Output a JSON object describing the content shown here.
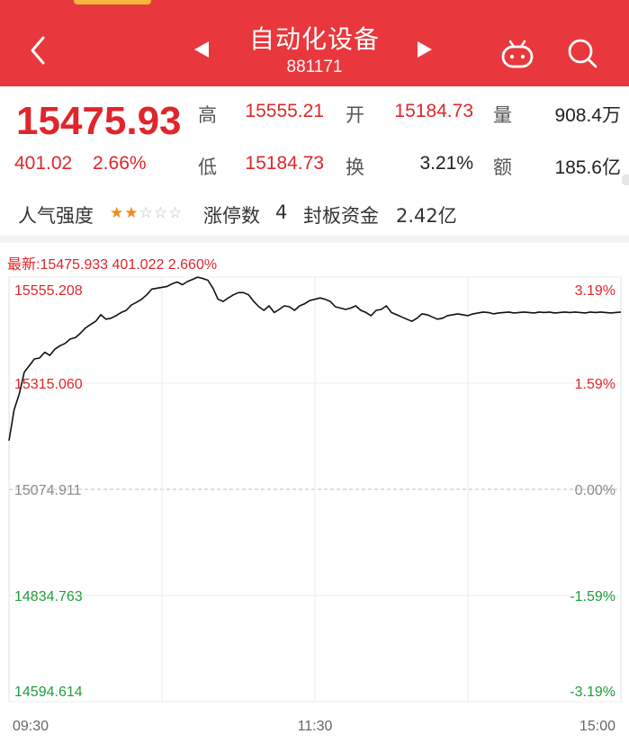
{
  "header": {
    "title": "自动化设备",
    "code": "881171",
    "icons": [
      "back-icon",
      "prev-arrow-icon",
      "next-arrow-icon",
      "robot-icon",
      "search-icon"
    ]
  },
  "quote": {
    "price": "15475.93",
    "change_abs": "401.02",
    "change_pct": "2.66%",
    "high_label": "高",
    "high_value": "15555.21",
    "open_label": "开",
    "open_value": "15184.73",
    "volume_label": "量",
    "volume_value": "908.4万",
    "low_label": "低",
    "low_value": "15184.73",
    "turnover_label": "换",
    "turnover_value": "3.21%",
    "amount_label": "额",
    "amount_value": "185.6亿",
    "popularity_label": "人气强度",
    "stars_total": 5,
    "stars_on": 2,
    "limit_up_label": "涨停数",
    "limit_up_value": "4",
    "seal_fund_label": "封板资金",
    "seal_fund_value": "2.42亿"
  },
  "colors": {
    "header_bg": "#e8383d",
    "up_red": "#e0262b",
    "down_green": "#1e9e3c",
    "accent_orange": "#f08c1c"
  },
  "chart_data": {
    "type": "line",
    "latest_text": "最新:15475.933 401.022 2.660%",
    "base": 15074.911,
    "ylim": [
      14594.614,
      15555.208
    ],
    "y_ticks_left": [
      "15555.208",
      "15315.060",
      "15074.911",
      "14834.763",
      "14594.614"
    ],
    "y_ticks_right": [
      "3.19%",
      "1.59%",
      "0.00%",
      "-1.59%",
      "-3.19%"
    ],
    "x_ticks": [
      "09:30",
      "11:30",
      "15:00"
    ],
    "grid": true,
    "total_minutes": 240,
    "series": [
      {
        "minutes": [
          0,
          2,
          4,
          6,
          8,
          10,
          12,
          14,
          16,
          18,
          20,
          22,
          24,
          26,
          28,
          30,
          32,
          34,
          36,
          38,
          40,
          42,
          44,
          46,
          48,
          50,
          52,
          54,
          56,
          58,
          60,
          62,
          64,
          66,
          68,
          70,
          72,
          74,
          76,
          78,
          80,
          82,
          84,
          86,
          88,
          90,
          92,
          94,
          96,
          98,
          100,
          102,
          104,
          106,
          108,
          110,
          112,
          114,
          116,
          118,
          120,
          122,
          124,
          126,
          128,
          130,
          132,
          134,
          136,
          138,
          140,
          142,
          144,
          146,
          148,
          150,
          152,
          154,
          156,
          158,
          160,
          162,
          164,
          166,
          168,
          170,
          172,
          174,
          176,
          178,
          180,
          182,
          184,
          186,
          188,
          190,
          192,
          194,
          196,
          198,
          200,
          202,
          204,
          206,
          208,
          210,
          212,
          214,
          216,
          218,
          220,
          222,
          224,
          226,
          228,
          230,
          232,
          234,
          236,
          238,
          240
        ],
        "values": [
          15185,
          15255,
          15290,
          15340,
          15355,
          15370,
          15372,
          15385,
          15378,
          15392,
          15400,
          15405,
          15415,
          15418,
          15428,
          15440,
          15448,
          15455,
          15470,
          15460,
          15462,
          15468,
          15475,
          15480,
          15492,
          15498,
          15505,
          15515,
          15528,
          15530,
          15532,
          15534,
          15540,
          15544,
          15538,
          15545,
          15550,
          15555,
          15552,
          15548,
          15530,
          15505,
          15500,
          15508,
          15515,
          15520,
          15520,
          15515,
          15500,
          15488,
          15480,
          15490,
          15475,
          15482,
          15490,
          15488,
          15480,
          15490,
          15495,
          15502,
          15505,
          15508,
          15505,
          15500,
          15488,
          15485,
          15482,
          15485,
          15490,
          15480,
          15475,
          15468,
          15480,
          15482,
          15490,
          15475,
          15470,
          15465,
          15460,
          15455,
          15462,
          15472,
          15470,
          15465,
          15460,
          15462,
          15468,
          15470,
          15472,
          15470,
          15468,
          15472,
          15474,
          15476,
          15475,
          15472,
          15474,
          15475,
          15476,
          15474,
          15475,
          15476,
          15475,
          15474,
          15476,
          15475,
          15476,
          15474,
          15475,
          15476,
          15475,
          15476,
          15475,
          15474,
          15476,
          15475,
          15476,
          15475,
          15474,
          15475,
          15476
        ]
      }
    ]
  }
}
